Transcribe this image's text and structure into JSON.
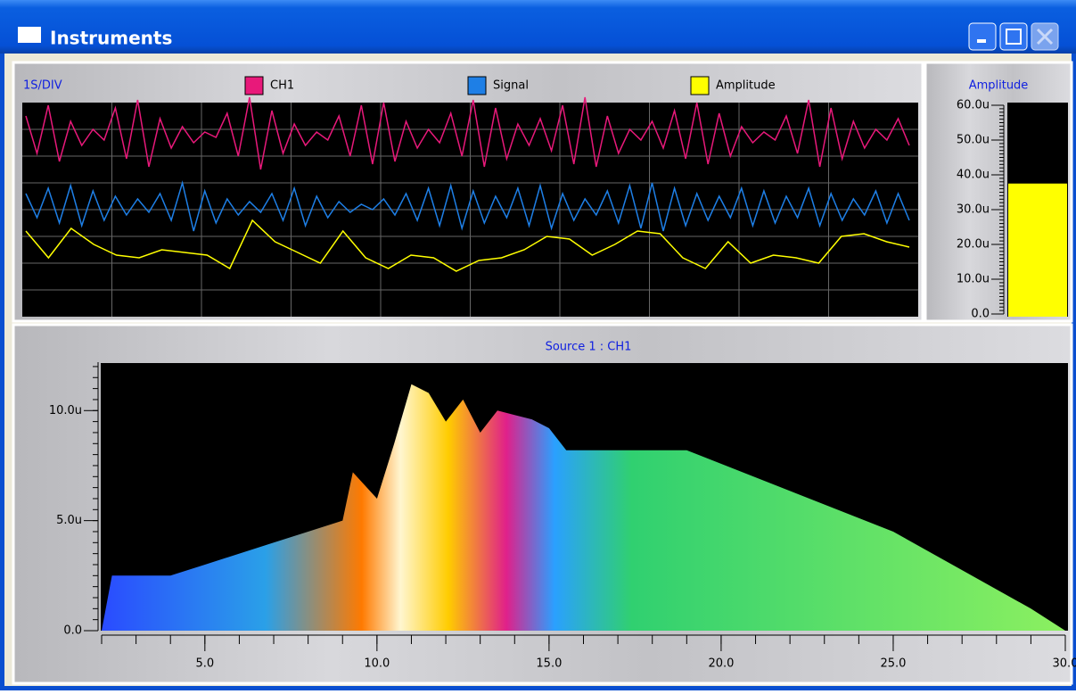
{
  "window": {
    "title": "Instruments"
  },
  "scope": {
    "type": "line",
    "label": "1S/DIV",
    "ylim": [
      0,
      8
    ],
    "grid": true,
    "series": [
      {
        "name": "CH1",
        "color": "#e8197a",
        "values": [
          7.5,
          6.1,
          7.9,
          5.8,
          7.3,
          6.4,
          7.0,
          6.6,
          7.8,
          5.9,
          8.1,
          5.6,
          7.4,
          6.3,
          7.1,
          6.5,
          6.9,
          6.7,
          7.6,
          6.0,
          8.2,
          5.5,
          7.7,
          6.1,
          7.2,
          6.4,
          6.9,
          6.6,
          7.5,
          6.0,
          7.9,
          5.7,
          8.0,
          5.8,
          7.3,
          6.3,
          7.0,
          6.5,
          7.6,
          6.0,
          8.1,
          5.6,
          7.8,
          5.9,
          7.2,
          6.4,
          7.4,
          6.2,
          7.9,
          5.7,
          8.2,
          5.6,
          7.5,
          6.1,
          7.0,
          6.6,
          7.3,
          6.3,
          7.7,
          5.9,
          8.0,
          5.7,
          7.6,
          6.0,
          7.1,
          6.5,
          6.9,
          6.6,
          7.5,
          6.1,
          8.1,
          5.6,
          7.8,
          5.9,
          7.3,
          6.3,
          7.0,
          6.6,
          7.4,
          6.4
        ]
      },
      {
        "name": "Signal",
        "color": "#1e7fe6",
        "values": [
          4.6,
          3.7,
          4.8,
          3.5,
          4.9,
          3.4,
          4.7,
          3.6,
          4.5,
          3.8,
          4.4,
          3.9,
          4.6,
          3.6,
          5.0,
          3.2,
          4.7,
          3.5,
          4.4,
          3.8,
          4.3,
          3.9,
          4.6,
          3.6,
          4.8,
          3.4,
          4.5,
          3.7,
          4.3,
          3.9,
          4.2,
          4.0,
          4.4,
          3.8,
          4.6,
          3.6,
          4.8,
          3.4,
          4.9,
          3.3,
          4.7,
          3.5,
          4.5,
          3.7,
          4.8,
          3.4,
          4.9,
          3.3,
          4.6,
          3.6,
          4.4,
          3.8,
          4.7,
          3.5,
          4.9,
          3.3,
          5.0,
          3.2,
          4.8,
          3.4,
          4.6,
          3.6,
          4.5,
          3.7,
          4.8,
          3.4,
          4.7,
          3.5,
          4.5,
          3.7,
          4.8,
          3.4,
          4.6,
          3.6,
          4.4,
          3.8,
          4.7,
          3.5,
          4.6,
          3.6
        ]
      },
      {
        "name": "Amplitude",
        "color": "#ffff00",
        "values": [
          3.2,
          2.2,
          3.3,
          2.7,
          2.3,
          2.2,
          2.5,
          2.4,
          2.3,
          1.8,
          3.6,
          2.8,
          2.4,
          2.0,
          3.2,
          2.2,
          1.8,
          2.3,
          2.2,
          1.7,
          2.1,
          2.2,
          2.5,
          3.0,
          2.9,
          2.3,
          2.7,
          3.2,
          3.1,
          2.2,
          1.8,
          2.8,
          2.0,
          2.3,
          2.2,
          2.0,
          3.0,
          3.1,
          2.8,
          2.6
        ]
      }
    ]
  },
  "meter": {
    "type": "bar",
    "title": "Amplitude",
    "value": 37.5,
    "color": "#ffff00",
    "ylim": [
      0,
      60
    ],
    "yticks": [
      {
        "value": 0,
        "label": "0.0"
      },
      {
        "value": 10,
        "label": "10.0u"
      },
      {
        "value": 20,
        "label": "20.0u"
      },
      {
        "value": 30,
        "label": "30.0u"
      },
      {
        "value": 40,
        "label": "40.0u"
      },
      {
        "value": 50,
        "label": "50.0u"
      },
      {
        "value": 60,
        "label": "60.0u"
      }
    ]
  },
  "spectrum": {
    "type": "area",
    "title": "Source 1 : CH1",
    "xlim": [
      2,
      30
    ],
    "ylim": [
      0,
      12.2
    ],
    "xticks": [
      {
        "value": 5,
        "label": "5.0"
      },
      {
        "value": 10,
        "label": "10.0"
      },
      {
        "value": 15,
        "label": "15.0"
      },
      {
        "value": 20,
        "label": "20.0"
      },
      {
        "value": 25,
        "label": "25.0"
      },
      {
        "value": 30,
        "label": "30.0"
      }
    ],
    "yticks": [
      {
        "value": 0,
        "label": "0.0"
      },
      {
        "value": 5,
        "label": "5.0u"
      },
      {
        "value": 10,
        "label": "10.0u"
      }
    ],
    "x": [
      2,
      2.3,
      4,
      5,
      6,
      7,
      8,
      9,
      9.3,
      10,
      10.5,
      11,
      11.5,
      12,
      12.5,
      13,
      13.5,
      14,
      14.5,
      15,
      15.5,
      19,
      25,
      29,
      30
    ],
    "values": [
      0,
      2.5,
      2.5,
      3,
      3.5,
      4,
      4.5,
      5,
      7.2,
      6.0,
      8.5,
      11.2,
      10.8,
      9.5,
      10.5,
      9.0,
      10.0,
      9.8,
      9.6,
      9.2,
      8.2,
      8.2,
      4.5,
      1.0,
      0
    ]
  }
}
